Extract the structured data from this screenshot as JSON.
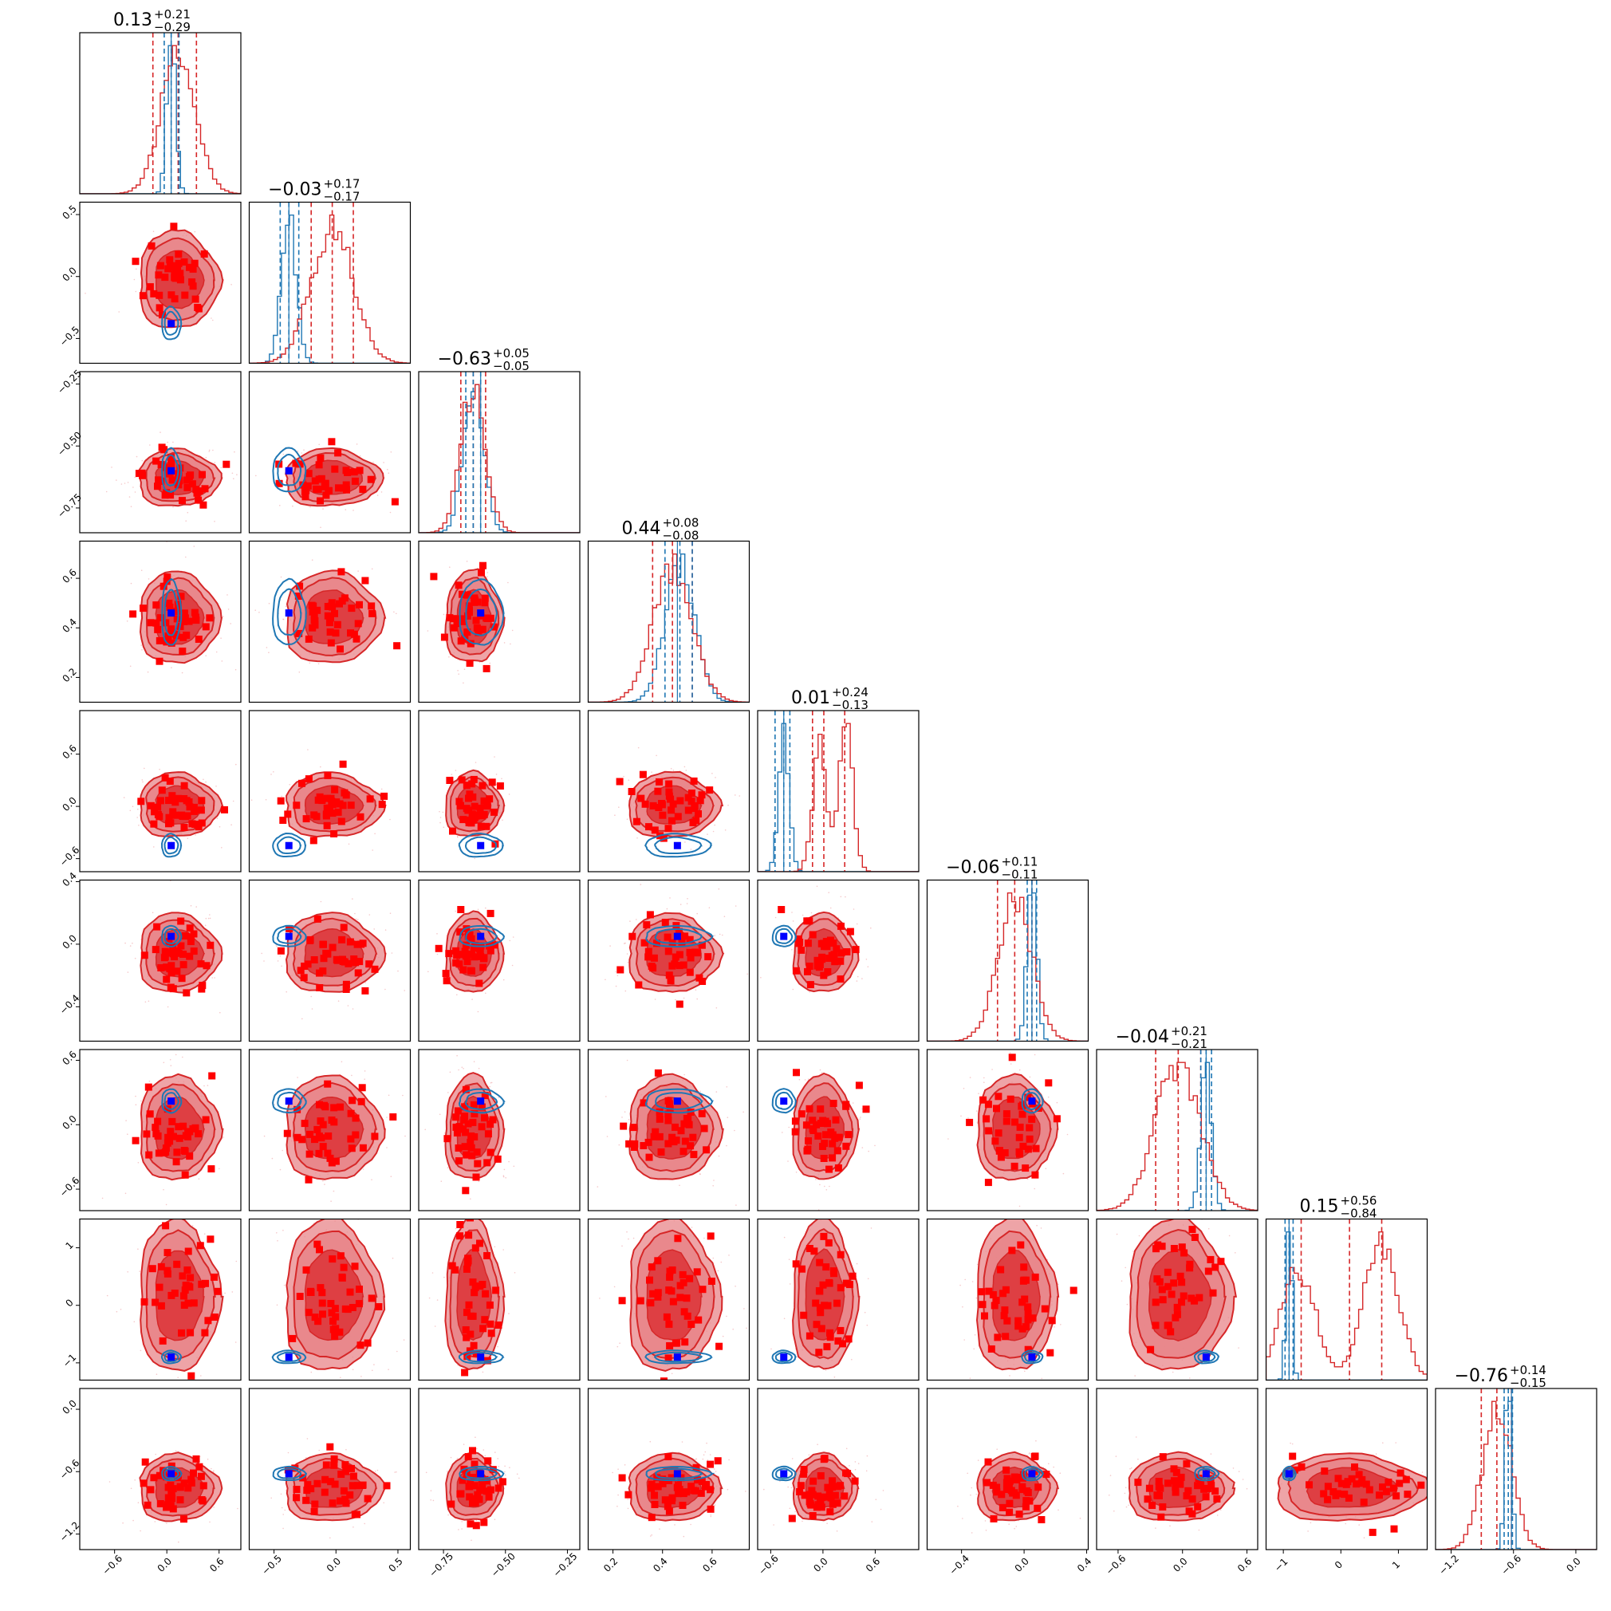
{
  "colors": {
    "red_line": "#d62728",
    "red_fill": "#e8858a",
    "red_dark": "#dd3b3f",
    "red_marker": "#ff0000",
    "blue_line": "#1f77b4",
    "blue_marker": "#0000ff"
  },
  "chart_data": {
    "type": "scatter",
    "n_params": 9,
    "params": [
      {
        "median": 0.13,
        "median_text": "0.13",
        "plus": "+0.21",
        "minus": "−0.29",
        "range": [
          -1.0,
          0.85
        ],
        "ticks": [
          -0.6,
          0.0,
          0.6
        ],
        "tick_labels": [
          "−0.6",
          "0.0",
          "0.6"
        ],
        "red_q": [
          -0.16,
          0.13,
          0.34
        ],
        "blue_q": [
          -0.03,
          0.05,
          0.14
        ],
        "red_sd": 0.2,
        "blue_sd": 0.05,
        "truth": 0.05
      },
      {
        "median": -0.03,
        "median_text": "−0.03",
        "plus": "+0.17",
        "minus": "−0.17",
        "range": [
          -0.7,
          0.6
        ],
        "ticks": [
          -0.5,
          0.0,
          0.5
        ],
        "tick_labels": [
          "−0.5",
          "0.0",
          "0.5"
        ],
        "red_q": [
          -0.2,
          -0.03,
          0.14
        ],
        "blue_q": [
          -0.45,
          -0.38,
          -0.3
        ],
        "red_sd": 0.17,
        "blue_sd": 0.06,
        "truth": -0.38
      },
      {
        "median": -0.63,
        "median_text": "−0.63",
        "plus": "+0.05",
        "minus": "−0.05",
        "range": [
          -0.85,
          -0.2
        ],
        "ticks": [
          -0.75,
          -0.5,
          -0.25
        ],
        "tick_labels": [
          "−0.75",
          "−0.50",
          "−0.25"
        ],
        "red_q": [
          -0.68,
          -0.63,
          -0.58
        ],
        "blue_q": [
          -0.66,
          -0.63,
          -0.6
        ],
        "red_sd": 0.05,
        "blue_sd": 0.04,
        "truth": -0.6
      },
      {
        "median": 0.44,
        "median_text": "0.44",
        "plus": "+0.08",
        "minus": "−0.08",
        "range": [
          0.1,
          0.75
        ],
        "ticks": [
          0.2,
          0.4,
          0.6
        ],
        "tick_labels": [
          "0.2",
          "0.4",
          "0.6"
        ],
        "red_q": [
          0.36,
          0.44,
          0.52
        ],
        "blue_q": [
          0.41,
          0.47,
          0.52
        ],
        "red_sd": 0.08,
        "blue_sd": 0.06,
        "truth": 0.46
      },
      {
        "median": 0.01,
        "median_text": "0.01",
        "plus": "+0.24",
        "minus": "−0.13",
        "range": [
          -0.75,
          1.1
        ],
        "ticks": [
          -0.6,
          0.0,
          0.6
        ],
        "tick_labels": [
          "−0.6",
          "0.0",
          "0.6"
        ],
        "red_q": [
          -0.12,
          0.01,
          0.25
        ],
        "blue_q": [
          -0.55,
          -0.45,
          -0.38
        ],
        "red_sd": 0.16,
        "blue_sd": 0.06,
        "truth": -0.45
      },
      {
        "median": -0.06,
        "median_text": "−0.06",
        "plus": "+0.11",
        "minus": "−0.11",
        "range": [
          -0.62,
          0.41
        ],
        "ticks": [
          -0.4,
          0.0,
          0.4
        ],
        "tick_labels": [
          "−0.4",
          "0.0",
          "0.4"
        ],
        "red_q": [
          -0.17,
          -0.06,
          0.05
        ],
        "blue_q": [
          0.02,
          0.05,
          0.08
        ],
        "red_sd": 0.11,
        "blue_sd": 0.03,
        "truth": 0.05
      },
      {
        "median": -0.04,
        "median_text": "−0.04",
        "plus": "+0.21",
        "minus": "−0.21",
        "range": [
          -0.8,
          0.7
        ],
        "ticks": [
          -0.6,
          0.0,
          0.6
        ],
        "tick_labels": [
          "−0.6",
          "0.0",
          "0.6"
        ],
        "red_q": [
          -0.25,
          -0.04,
          0.17
        ],
        "blue_q": [
          0.17,
          0.22,
          0.27
        ],
        "red_sd": 0.21,
        "blue_sd": 0.05,
        "truth": 0.22
      },
      {
        "median": 0.15,
        "median_text": "0.15",
        "plus": "+0.56",
        "minus": "−0.84",
        "range": [
          -1.3,
          1.5
        ],
        "ticks": [
          -1,
          0,
          1
        ],
        "tick_labels": [
          "−1",
          "0",
          "1"
        ],
        "red_q": [
          -0.69,
          0.15,
          0.71
        ],
        "blue_q": [
          -0.97,
          -0.9,
          -0.83
        ],
        "red_sd": 0.6,
        "blue_sd": 0.05,
        "truth": -0.9
      },
      {
        "median": -0.76,
        "median_text": "−0.76",
        "plus": "+0.14",
        "minus": "−0.15",
        "range": [
          -1.35,
          0.2
        ],
        "ticks": [
          -1.2,
          -0.6,
          0.0
        ],
        "tick_labels": [
          "−1.2",
          "−0.6",
          "0.0"
        ],
        "red_q": [
          -0.91,
          -0.76,
          -0.62
        ],
        "blue_q": [
          -0.69,
          -0.65,
          -0.61
        ],
        "red_sd": 0.14,
        "blue_sd": 0.03,
        "truth": -0.62
      }
    ],
    "grid": false,
    "legend": "none"
  }
}
